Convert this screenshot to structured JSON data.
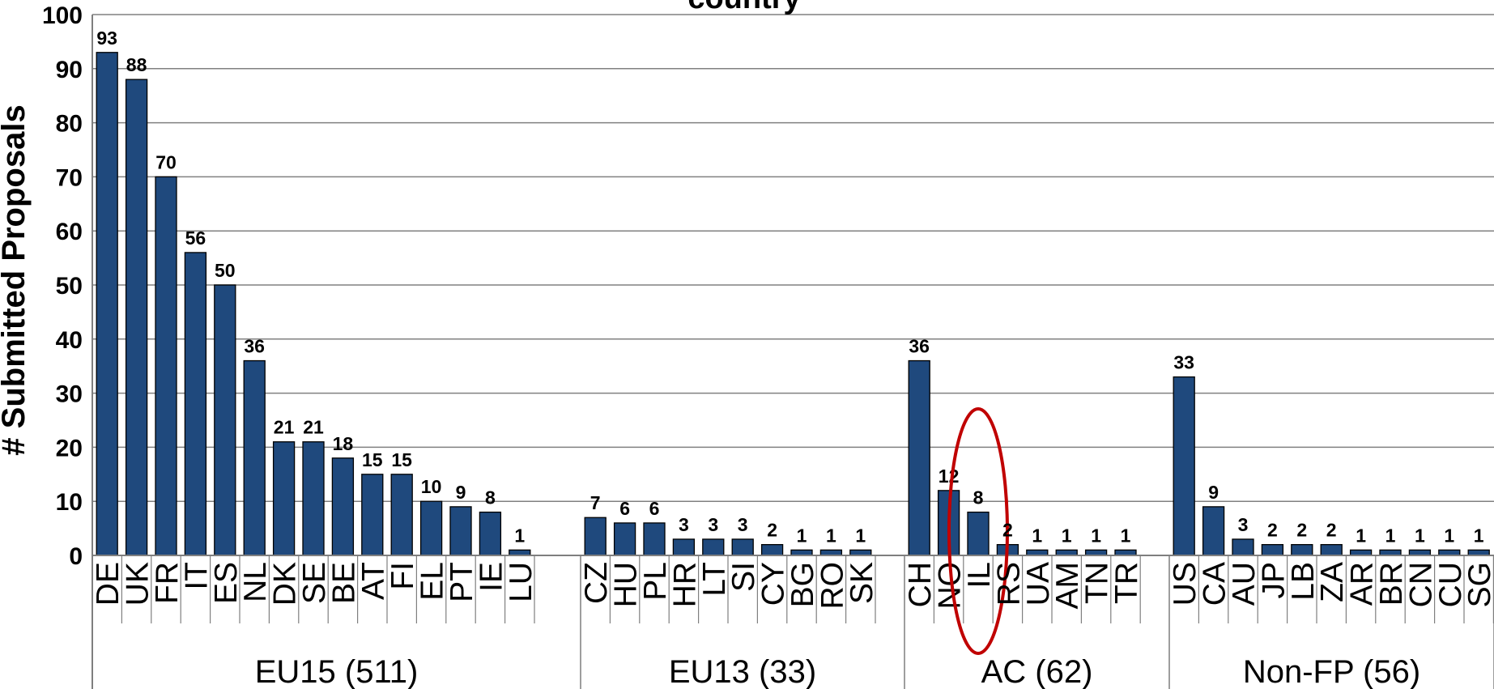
{
  "chart_data": {
    "type": "bar",
    "title": "country",
    "ylabel": "# Submitted Proposals",
    "xlabel": "",
    "ylim": [
      0,
      100
    ],
    "yticks": [
      0,
      10,
      20,
      30,
      40,
      50,
      60,
      70,
      80,
      90,
      100
    ],
    "grid": true,
    "bar_color": "#1f497d",
    "highlight_color": "#c00000",
    "highlighted_category": "IL",
    "groups": [
      {
        "label": "EU15 (511)",
        "categories": [
          "DE",
          "UK",
          "FR",
          "IT",
          "ES",
          "NL",
          "DK",
          "SE",
          "BE",
          "AT",
          "FI",
          "EL",
          "PT",
          "IE",
          "LU"
        ],
        "values": [
          93,
          88,
          70,
          56,
          50,
          36,
          21,
          21,
          18,
          15,
          15,
          10,
          9,
          8,
          1
        ]
      },
      {
        "label": "EU13 (33)",
        "categories": [
          "CZ",
          "HU",
          "PL",
          "HR",
          "LT",
          "SI",
          "CY",
          "BG",
          "RO",
          "SK"
        ],
        "values": [
          7,
          6,
          6,
          3,
          3,
          3,
          2,
          1,
          1,
          1
        ]
      },
      {
        "label": "AC (62)",
        "categories": [
          "CH",
          "NO",
          "IL",
          "RS",
          "UA",
          "AM",
          "TN",
          "TR"
        ],
        "values": [
          36,
          12,
          8,
          2,
          1,
          1,
          1,
          1
        ]
      },
      {
        "label": "Non-FP (56)",
        "categories": [
          "US",
          "CA",
          "AU",
          "JP",
          "LB",
          "ZA",
          "AR",
          "BR",
          "CN",
          "CU",
          "SG"
        ],
        "values": [
          33,
          9,
          3,
          2,
          2,
          2,
          1,
          1,
          1,
          1,
          1
        ]
      }
    ]
  }
}
